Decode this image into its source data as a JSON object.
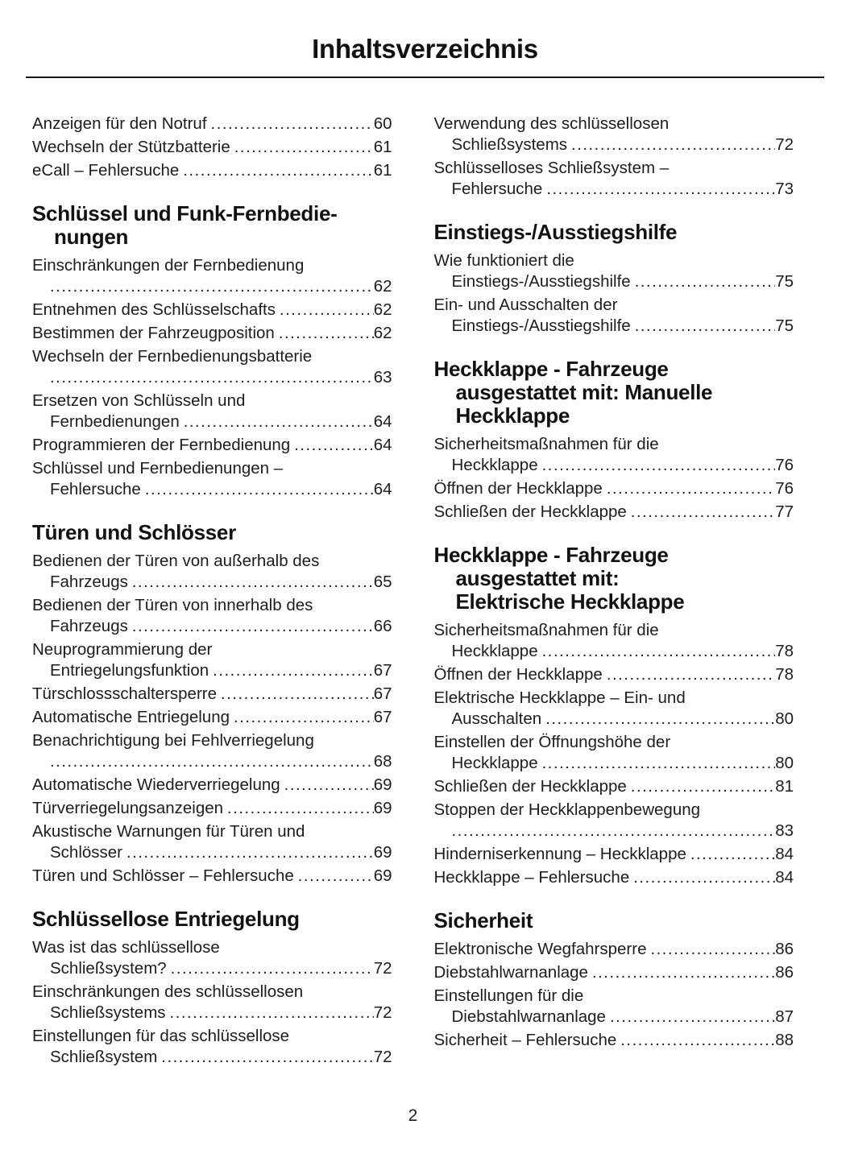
{
  "page": {
    "title": "Inhaltsverzeichnis",
    "page_number": "2"
  },
  "colors": {
    "text": "#1d1d1d",
    "heading": "#121212",
    "rule": "#1a1a1a",
    "background": "#ffffff"
  },
  "columns": [
    {
      "blocks": [
        {
          "type": "entries",
          "items": [
            {
              "lines": [
                "Anzeigen für den Notruf"
              ],
              "page": "60"
            },
            {
              "lines": [
                "Wechseln der Stützbatterie"
              ],
              "page": "61"
            },
            {
              "lines": [
                "eCall – Fehlersuche"
              ],
              "page": "61"
            }
          ]
        },
        {
          "type": "section",
          "lines": [
            "Schlüssel und Funk-Fernbedie-",
            "nungen"
          ]
        },
        {
          "type": "entries",
          "items": [
            {
              "lines": [
                "Einschränkungen der Fernbedienung",
                ""
              ],
              "page": "62"
            },
            {
              "lines": [
                "Entnehmen des Schlüsselschafts"
              ],
              "page": "62"
            },
            {
              "lines": [
                "Bestimmen der Fahrzeugposition"
              ],
              "page": "62"
            },
            {
              "lines": [
                "Wechseln der Fernbedienungsbatterie",
                ""
              ],
              "page": "63"
            },
            {
              "lines": [
                "Ersetzen von Schlüsseln und",
                "Fernbedienungen"
              ],
              "page": "64"
            },
            {
              "lines": [
                "Programmieren der Fernbedienung"
              ],
              "page": "64"
            },
            {
              "lines": [
                "Schlüssel und Fernbedienungen –",
                "Fehlersuche"
              ],
              "page": "64"
            }
          ]
        },
        {
          "type": "section",
          "lines": [
            "Türen und Schlösser"
          ]
        },
        {
          "type": "entries",
          "items": [
            {
              "lines": [
                "Bedienen der Türen von außerhalb des",
                "Fahrzeugs"
              ],
              "page": "65"
            },
            {
              "lines": [
                "Bedienen der Türen von innerhalb des",
                "Fahrzeugs"
              ],
              "page": "66"
            },
            {
              "lines": [
                "Neuprogrammierung der",
                "Entriegelungsfunktion"
              ],
              "page": "67"
            },
            {
              "lines": [
                "Türschlossschaltersperre"
              ],
              "page": "67"
            },
            {
              "lines": [
                "Automatische Entriegelung"
              ],
              "page": "67"
            },
            {
              "lines": [
                "Benachrichtigung bei Fehlverriegelung",
                ""
              ],
              "page": "68"
            },
            {
              "lines": [
                "Automatische Wiederverriegelung"
              ],
              "page": "69"
            },
            {
              "lines": [
                "Türverriegelungsanzeigen"
              ],
              "page": "69"
            },
            {
              "lines": [
                "Akustische Warnungen für Türen und",
                "Schlösser"
              ],
              "page": "69"
            },
            {
              "lines": [
                "Türen und Schlösser – Fehlersuche"
              ],
              "page": "69"
            }
          ]
        },
        {
          "type": "section",
          "lines": [
            "Schlüssellose Entriegelung"
          ]
        },
        {
          "type": "entries",
          "items": [
            {
              "lines": [
                "Was ist das schlüssellose",
                "Schließsystem?"
              ],
              "page": "72"
            },
            {
              "lines": [
                "Einschränkungen des schlüssellosen",
                "Schließsystems"
              ],
              "page": "72"
            },
            {
              "lines": [
                "Einstellungen für das schlüssellose",
                "Schließsystem"
              ],
              "page": "72"
            }
          ]
        }
      ]
    },
    {
      "blocks": [
        {
          "type": "entries",
          "items": [
            {
              "lines": [
                "Verwendung des schlüssellosen",
                "Schließsystems"
              ],
              "page": "72"
            },
            {
              "lines": [
                "Schlüsselloses Schließsystem –",
                "Fehlersuche"
              ],
              "page": "73"
            }
          ]
        },
        {
          "type": "section",
          "lines": [
            "Einstiegs-/Ausstiegshilfe"
          ]
        },
        {
          "type": "entries",
          "items": [
            {
              "lines": [
                "Wie funktioniert die",
                "Einstiegs-/Ausstiegshilfe"
              ],
              "page": "75"
            },
            {
              "lines": [
                "Ein- und Ausschalten der",
                "Einstiegs-/Ausstiegshilfe"
              ],
              "page": "75"
            }
          ]
        },
        {
          "type": "section",
          "lines": [
            "Heckklappe - Fahrzeuge",
            "ausgestattet mit: Manuelle",
            "Heckklappe"
          ]
        },
        {
          "type": "entries",
          "items": [
            {
              "lines": [
                "Sicherheitsmaßnahmen für die",
                "Heckklappe"
              ],
              "page": "76"
            },
            {
              "lines": [
                "Öffnen der Heckklappe"
              ],
              "page": "76"
            },
            {
              "lines": [
                "Schließen der Heckklappe"
              ],
              "page": "77"
            }
          ]
        },
        {
          "type": "section",
          "lines": [
            "Heckklappe - Fahrzeuge",
            "ausgestattet mit:",
            "Elektrische Heckklappe"
          ]
        },
        {
          "type": "entries",
          "items": [
            {
              "lines": [
                "Sicherheitsmaßnahmen für die",
                "Heckklappe"
              ],
              "page": "78"
            },
            {
              "lines": [
                "Öffnen der Heckklappe"
              ],
              "page": "78"
            },
            {
              "lines": [
                "Elektrische Heckklappe – Ein- und",
                "Ausschalten"
              ],
              "page": "80"
            },
            {
              "lines": [
                "Einstellen der Öffnungshöhe der",
                "Heckklappe"
              ],
              "page": "80"
            },
            {
              "lines": [
                "Schließen der Heckklappe"
              ],
              "page": "81"
            },
            {
              "lines": [
                "Stoppen der Heckklappenbewegung",
                ""
              ],
              "page": "83"
            },
            {
              "lines": [
                "Hinderniserkennung – Heckklappe"
              ],
              "page": "84"
            },
            {
              "lines": [
                "Heckklappe – Fehlersuche"
              ],
              "page": "84"
            }
          ]
        },
        {
          "type": "section",
          "lines": [
            "Sicherheit"
          ]
        },
        {
          "type": "entries",
          "items": [
            {
              "lines": [
                "Elektronische Wegfahrsperre"
              ],
              "page": "86"
            },
            {
              "lines": [
                "Diebstahlwarnanlage"
              ],
              "page": "86"
            },
            {
              "lines": [
                "Einstellungen für die",
                "Diebstahlwarnanlage"
              ],
              "page": "87"
            },
            {
              "lines": [
                "Sicherheit – Fehlersuche"
              ],
              "page": "88"
            }
          ]
        }
      ]
    }
  ]
}
